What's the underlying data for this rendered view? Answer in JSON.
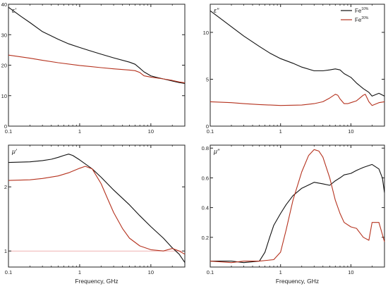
{
  "chart_data": [
    {
      "id": "eps_real",
      "type": "line",
      "panel_label": "ε'",
      "xlabel": "",
      "x_scale": "log",
      "xlim": [
        0.1,
        30
      ],
      "ylim": [
        0,
        40
      ],
      "x_ticks": [
        0.1,
        1,
        10
      ],
      "x_tick_labels": [
        "0.1",
        "1",
        "10"
      ],
      "y_ticks": [
        0,
        10,
        20,
        30,
        40
      ],
      "y_tick_labels": [
        "0",
        "10",
        "20",
        "30",
        "40"
      ],
      "series": [
        {
          "name": "Fe10%",
          "color": "#111111",
          "x": [
            0.1,
            0.15,
            0.2,
            0.3,
            0.5,
            0.7,
            1,
            1.5,
            2,
            3,
            5,
            6,
            7,
            8,
            10,
            12,
            15,
            20,
            25,
            30
          ],
          "y": [
            39,
            36,
            34,
            31,
            28.5,
            27,
            25.8,
            24.5,
            23.6,
            22.4,
            21,
            20.3,
            19,
            17.8,
            16.5,
            16,
            15.5,
            14.8,
            14.3,
            14
          ]
        },
        {
          "name": "Fe20%",
          "color": "#b5321e",
          "x": [
            0.1,
            0.2,
            0.3,
            0.5,
            1,
            2,
            3,
            5,
            6,
            7,
            8,
            10,
            15,
            20,
            25,
            30
          ],
          "y": [
            23.3,
            22.3,
            21.6,
            20.8,
            19.9,
            19.2,
            18.8,
            18.4,
            18.2,
            17.6,
            16.5,
            16.1,
            15.5,
            15.0,
            14.5,
            14.2
          ]
        }
      ]
    },
    {
      "id": "eps_imag",
      "type": "line",
      "panel_label": "ε\"",
      "xlabel": "",
      "x_scale": "log",
      "xlim": [
        0.1,
        30
      ],
      "ylim": [
        0,
        13
      ],
      "x_ticks": [
        0.1,
        1,
        10
      ],
      "x_tick_labels": [
        "0.1",
        "1",
        "10"
      ],
      "y_ticks": [
        0,
        5,
        10
      ],
      "y_tick_labels": [
        "0",
        "5",
        "10"
      ],
      "legend": {
        "position": "top-right",
        "entries": [
          {
            "base": "Fe",
            "sup": "10%",
            "color": "#111111"
          },
          {
            "base": "Fe",
            "sup": "20%",
            "color": "#b5321e"
          }
        ]
      },
      "series": [
        {
          "name": "Fe10%",
          "color": "#111111",
          "x": [
            0.1,
            0.15,
            0.2,
            0.3,
            0.5,
            0.7,
            1,
            1.5,
            2,
            3,
            4,
            5,
            6,
            7,
            8,
            10,
            12,
            15,
            18,
            20,
            25,
            30
          ],
          "y": [
            12.3,
            11.3,
            10.6,
            9.6,
            8.5,
            7.8,
            7.2,
            6.7,
            6.3,
            5.9,
            5.9,
            6.0,
            6.1,
            6.0,
            5.6,
            5.2,
            4.6,
            4.0,
            3.6,
            3.2,
            3.5,
            3.2
          ]
        },
        {
          "name": "Fe20%",
          "color": "#b5321e",
          "x": [
            0.1,
            0.2,
            0.3,
            0.5,
            1,
            2,
            3,
            4,
            5,
            6,
            6.5,
            7,
            8,
            9,
            10,
            12,
            15,
            16,
            18,
            20,
            25,
            30
          ],
          "y": [
            2.6,
            2.5,
            2.4,
            2.3,
            2.2,
            2.25,
            2.4,
            2.6,
            3.0,
            3.4,
            3.3,
            2.9,
            2.4,
            2.4,
            2.5,
            2.7,
            3.3,
            3.4,
            2.6,
            2.2,
            2.5,
            2.6
          ]
        }
      ]
    },
    {
      "id": "mu_real",
      "type": "line",
      "panel_label": "μ'",
      "xlabel": "Frequency, GHz",
      "x_scale": "log",
      "xlim": [
        0.1,
        30
      ],
      "ylim": [
        0.75,
        2.65
      ],
      "x_ticks": [
        0.1,
        1,
        10
      ],
      "x_tick_labels": [
        "0.1",
        "1",
        "10"
      ],
      "y_ticks": [
        1,
        2
      ],
      "y_tick_labels": [
        "1",
        "2"
      ],
      "reference_line": {
        "y": 1,
        "color": "#e99a9a"
      },
      "series": [
        {
          "name": "Fe10%",
          "color": "#111111",
          "x": [
            0.1,
            0.2,
            0.3,
            0.4,
            0.5,
            0.6,
            0.7,
            0.8,
            1,
            1.5,
            2,
            3,
            5,
            7,
            10,
            15,
            20,
            25,
            30
          ],
          "y": [
            2.38,
            2.39,
            2.41,
            2.43,
            2.46,
            2.49,
            2.51,
            2.49,
            2.42,
            2.28,
            2.15,
            1.95,
            1.72,
            1.55,
            1.38,
            1.2,
            1.05,
            0.95,
            0.82
          ]
        },
        {
          "name": "Fe20%",
          "color": "#b5321e",
          "x": [
            0.1,
            0.2,
            0.3,
            0.5,
            0.7,
            1,
            1.2,
            1.5,
            2,
            2.5,
            3,
            4,
            5,
            7,
            10,
            15,
            20,
            25,
            30
          ],
          "y": [
            2.1,
            2.11,
            2.13,
            2.17,
            2.22,
            2.29,
            2.32,
            2.28,
            2.05,
            1.8,
            1.6,
            1.35,
            1.2,
            1.08,
            1.02,
            1.0,
            1.04,
            1.0,
            0.95
          ]
        }
      ]
    },
    {
      "id": "mu_imag",
      "type": "line",
      "panel_label": "μ\"",
      "xlabel": "Frequency, GHz",
      "x_scale": "log",
      "xlim": [
        0.1,
        30
      ],
      "ylim": [
        0,
        0.82
      ],
      "x_ticks": [
        0.1,
        1,
        10
      ],
      "x_tick_labels": [
        "0.1",
        "1",
        "10"
      ],
      "y_ticks": [
        0.2,
        0.4,
        0.6,
        0.8
      ],
      "y_tick_labels": [
        "0.2",
        "0.4",
        "0.6",
        "0.8"
      ],
      "series": [
        {
          "name": "Fe10%",
          "color": "#111111",
          "x": [
            0.1,
            0.2,
            0.3,
            0.5,
            0.6,
            0.7,
            0.8,
            1,
            1.2,
            1.5,
            2,
            3,
            4,
            5,
            6,
            7,
            8,
            10,
            12,
            15,
            20,
            25,
            28,
            30
          ],
          "y": [
            0.04,
            0.04,
            0.03,
            0.04,
            0.1,
            0.2,
            0.28,
            0.36,
            0.42,
            0.48,
            0.53,
            0.57,
            0.56,
            0.55,
            0.58,
            0.6,
            0.62,
            0.63,
            0.65,
            0.67,
            0.69,
            0.66,
            0.6,
            0.5
          ]
        },
        {
          "name": "Fe20%",
          "color": "#b5321e",
          "x": [
            0.1,
            0.2,
            0.3,
            0.5,
            0.8,
            1,
            1.2,
            1.5,
            2,
            2.5,
            3,
            3.5,
            4,
            5,
            6,
            7,
            8,
            10,
            12,
            15,
            18,
            20,
            25,
            30
          ],
          "y": [
            0.04,
            0.03,
            0.04,
            0.04,
            0.05,
            0.1,
            0.25,
            0.45,
            0.64,
            0.75,
            0.79,
            0.78,
            0.74,
            0.6,
            0.45,
            0.36,
            0.3,
            0.27,
            0.26,
            0.2,
            0.18,
            0.3,
            0.3,
            0.17
          ]
        }
      ]
    }
  ]
}
